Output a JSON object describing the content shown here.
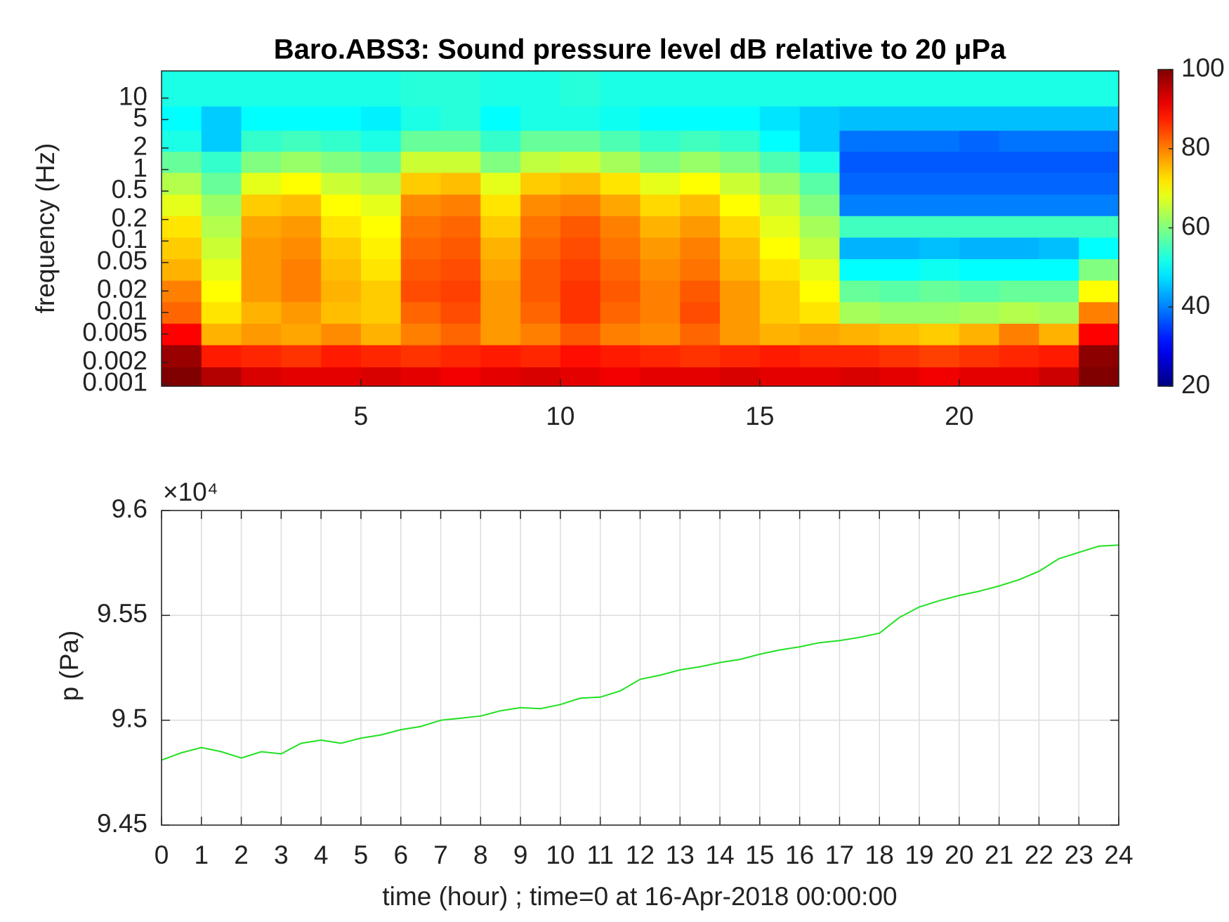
{
  "chart_data": [
    {
      "type": "heatmap",
      "title": "Baro.ABS3: Sound pressure level dB relative to 20 μPa",
      "ylabel": "frequency (Hz)",
      "x": [
        0.5,
        1.5,
        2.5,
        3.5,
        4.5,
        5.5,
        6.5,
        7.5,
        8.5,
        9.5,
        10.5,
        11.5,
        12.5,
        13.5,
        14.5,
        15.5,
        16.5,
        17.5,
        18.5,
        19.5,
        20.5,
        21.5,
        22.5,
        23.5
      ],
      "y": [
        0.0012,
        0.0025,
        0.005,
        0.01,
        0.02,
        0.04,
        0.08,
        0.16,
        0.32,
        0.64,
        1.3,
        2.5,
        5,
        12
      ],
      "z": [
        [
          100,
          96,
          93,
          92,
          92,
          93,
          92,
          91,
          92,
          93,
          92,
          91,
          92,
          92,
          93,
          92,
          92,
          93,
          92,
          91,
          92,
          92,
          94,
          100
        ],
        [
          98,
          88,
          87,
          86,
          88,
          87,
          86,
          87,
          88,
          87,
          89,
          88,
          87,
          86,
          87,
          88,
          87,
          87,
          86,
          85,
          86,
          87,
          88,
          99
        ],
        [
          90,
          76,
          78,
          77,
          79,
          76,
          80,
          82,
          78,
          80,
          83,
          80,
          79,
          82,
          78,
          76,
          77,
          76,
          75,
          74,
          76,
          80,
          76,
          90
        ],
        [
          82,
          72,
          76,
          78,
          75,
          74,
          82,
          84,
          78,
          82,
          86,
          82,
          80,
          84,
          78,
          74,
          72,
          63,
          62,
          62,
          63,
          64,
          63,
          80
        ],
        [
          80,
          70,
          78,
          80,
          76,
          74,
          84,
          85,
          78,
          83,
          86,
          83,
          80,
          83,
          78,
          74,
          70,
          58,
          57,
          58,
          57,
          58,
          58,
          70
        ],
        [
          76,
          68,
          78,
          80,
          75,
          72,
          83,
          84,
          77,
          83,
          85,
          82,
          79,
          81,
          76,
          72,
          68,
          50,
          50,
          51,
          50,
          50,
          50,
          60
        ],
        [
          74,
          66,
          78,
          79,
          74,
          71,
          82,
          83,
          76,
          82,
          84,
          81,
          78,
          80,
          75,
          70,
          65,
          44,
          44,
          45,
          44,
          44,
          45,
          50
        ],
        [
          72,
          64,
          77,
          78,
          72,
          70,
          81,
          82,
          74,
          81,
          83,
          80,
          76,
          78,
          73,
          68,
          63,
          55,
          55,
          55,
          55,
          55,
          55,
          55
        ],
        [
          68,
          62,
          74,
          75,
          70,
          68,
          79,
          80,
          72,
          79,
          80,
          77,
          73,
          75,
          70,
          66,
          60,
          40,
          40,
          40,
          40,
          40,
          40,
          40
        ],
        [
          64,
          58,
          68,
          70,
          66,
          64,
          74,
          75,
          68,
          74,
          75,
          72,
          68,
          70,
          66,
          62,
          57,
          38,
          38,
          38,
          38,
          38,
          38,
          38
        ],
        [
          58,
          54,
          60,
          62,
          60,
          58,
          66,
          66,
          60,
          65,
          66,
          63,
          60,
          62,
          60,
          56,
          52,
          37,
          37,
          37,
          37,
          37,
          37,
          37
        ],
        [
          52,
          46,
          54,
          55,
          54,
          52,
          58,
          58,
          54,
          58,
          58,
          56,
          54,
          55,
          54,
          50,
          46,
          39,
          39,
          39,
          38,
          39,
          39,
          39
        ],
        [
          50,
          46,
          50,
          50,
          50,
          49,
          52,
          53,
          50,
          52,
          52,
          51,
          50,
          50,
          50,
          48,
          46,
          45,
          45,
          45,
          45,
          45,
          45,
          45
        ],
        [
          52,
          52,
          52,
          52,
          52,
          52,
          53,
          53,
          52,
          52,
          53,
          52,
          52,
          52,
          52,
          52,
          52,
          52,
          52,
          52,
          52,
          52,
          52,
          52
        ]
      ],
      "xlim": [
        0,
        24
      ],
      "xticks": [
        5,
        10,
        15,
        20
      ],
      "ylim": [
        0.00093,
        24
      ],
      "yscale": "log",
      "yticks": [
        0.001,
        0.002,
        0.005,
        0.01,
        0.02,
        0.05,
        0.1,
        0.2,
        0.5,
        1,
        2,
        5,
        10
      ],
      "colorbar": {
        "lim": [
          20,
          100
        ],
        "ticks": [
          20,
          40,
          60,
          80,
          100
        ],
        "colormap": "jet"
      }
    },
    {
      "type": "line",
      "xlabel": "time (hour) ; time=0 at 16-Apr-2018 00:00:00",
      "ylabel": "p (Pa)",
      "y_exponent": "×10⁴",
      "x": [
        0,
        0.5,
        1,
        1.5,
        2,
        2.5,
        3,
        3.5,
        4,
        4.5,
        5,
        5.5,
        6,
        6.5,
        7,
        7.5,
        8,
        8.5,
        9,
        9.5,
        10,
        10.5,
        11,
        11.5,
        12,
        12.5,
        13,
        13.5,
        14,
        14.5,
        15,
        15.5,
        16,
        16.5,
        17,
        17.5,
        18,
        18.5,
        19,
        19.5,
        20,
        20.5,
        21,
        21.5,
        22,
        22.5,
        23,
        23.5,
        24
      ],
      "series": [
        {
          "color": "#22e022",
          "values": [
            94810,
            94845,
            94870,
            94850,
            94820,
            94850,
            94840,
            94890,
            94905,
            94890,
            94915,
            94930,
            94955,
            94970,
            95000,
            95010,
            95020,
            95045,
            95060,
            95055,
            95075,
            95105,
            95110,
            95140,
            95195,
            95215,
            95240,
            95255,
            95275,
            95290,
            95315,
            95335,
            95350,
            95370,
            95380,
            95395,
            95415,
            95490,
            95540,
            95570,
            95595,
            95615,
            95640,
            95670,
            95710,
            95770,
            95800,
            95830,
            95835
          ]
        }
      ],
      "xlim": [
        0,
        24
      ],
      "xticks": [
        0,
        1,
        2,
        3,
        4,
        5,
        6,
        7,
        8,
        9,
        10,
        11,
        12,
        13,
        14,
        15,
        16,
        17,
        18,
        19,
        20,
        21,
        22,
        23,
        24
      ],
      "ylim": [
        94500,
        96000
      ],
      "yticks": [
        {
          "value": 94500,
          "label": "9.45"
        },
        {
          "value": 95000,
          "label": "9.5"
        },
        {
          "value": 95500,
          "label": "9.55"
        },
        {
          "value": 96000,
          "label": "9.6"
        }
      ],
      "grid": true
    }
  ]
}
